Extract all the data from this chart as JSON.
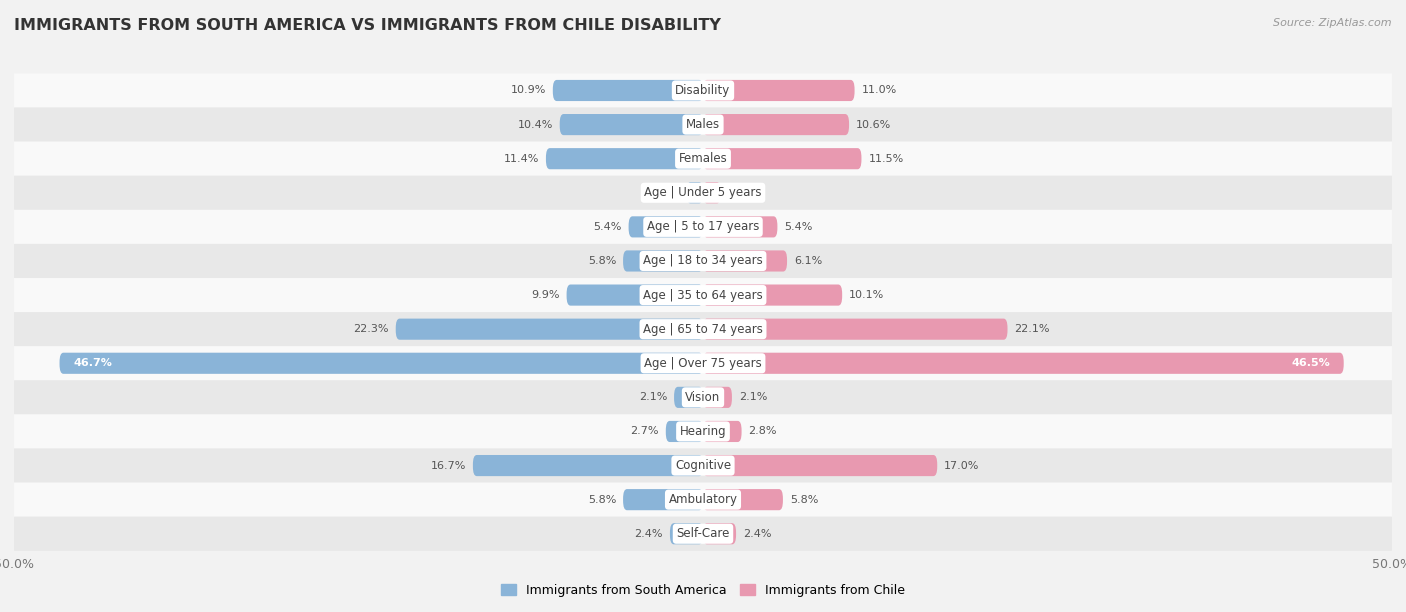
{
  "title": "IMMIGRANTS FROM SOUTH AMERICA VS IMMIGRANTS FROM CHILE DISABILITY",
  "source": "Source: ZipAtlas.com",
  "categories": [
    "Disability",
    "Males",
    "Females",
    "Age | Under 5 years",
    "Age | 5 to 17 years",
    "Age | 18 to 34 years",
    "Age | 35 to 64 years",
    "Age | 65 to 74 years",
    "Age | Over 75 years",
    "Vision",
    "Hearing",
    "Cognitive",
    "Ambulatory",
    "Self-Care"
  ],
  "left_values": [
    10.9,
    10.4,
    11.4,
    1.2,
    5.4,
    5.8,
    9.9,
    22.3,
    46.7,
    2.1,
    2.7,
    16.7,
    5.8,
    2.4
  ],
  "right_values": [
    11.0,
    10.6,
    11.5,
    1.3,
    5.4,
    6.1,
    10.1,
    22.1,
    46.5,
    2.1,
    2.8,
    17.0,
    5.8,
    2.4
  ],
  "left_color": "#8ab4d8",
  "right_color": "#e899b0",
  "left_label": "Immigrants from South America",
  "right_label": "Immigrants from Chile",
  "max_val": 50.0,
  "bg_color": "#f2f2f2",
  "row_bg_light": "#f9f9f9",
  "row_bg_dark": "#e8e8e8",
  "title_fontsize": 11.5,
  "label_fontsize": 8.5,
  "value_fontsize": 8.0,
  "bar_height": 0.62
}
